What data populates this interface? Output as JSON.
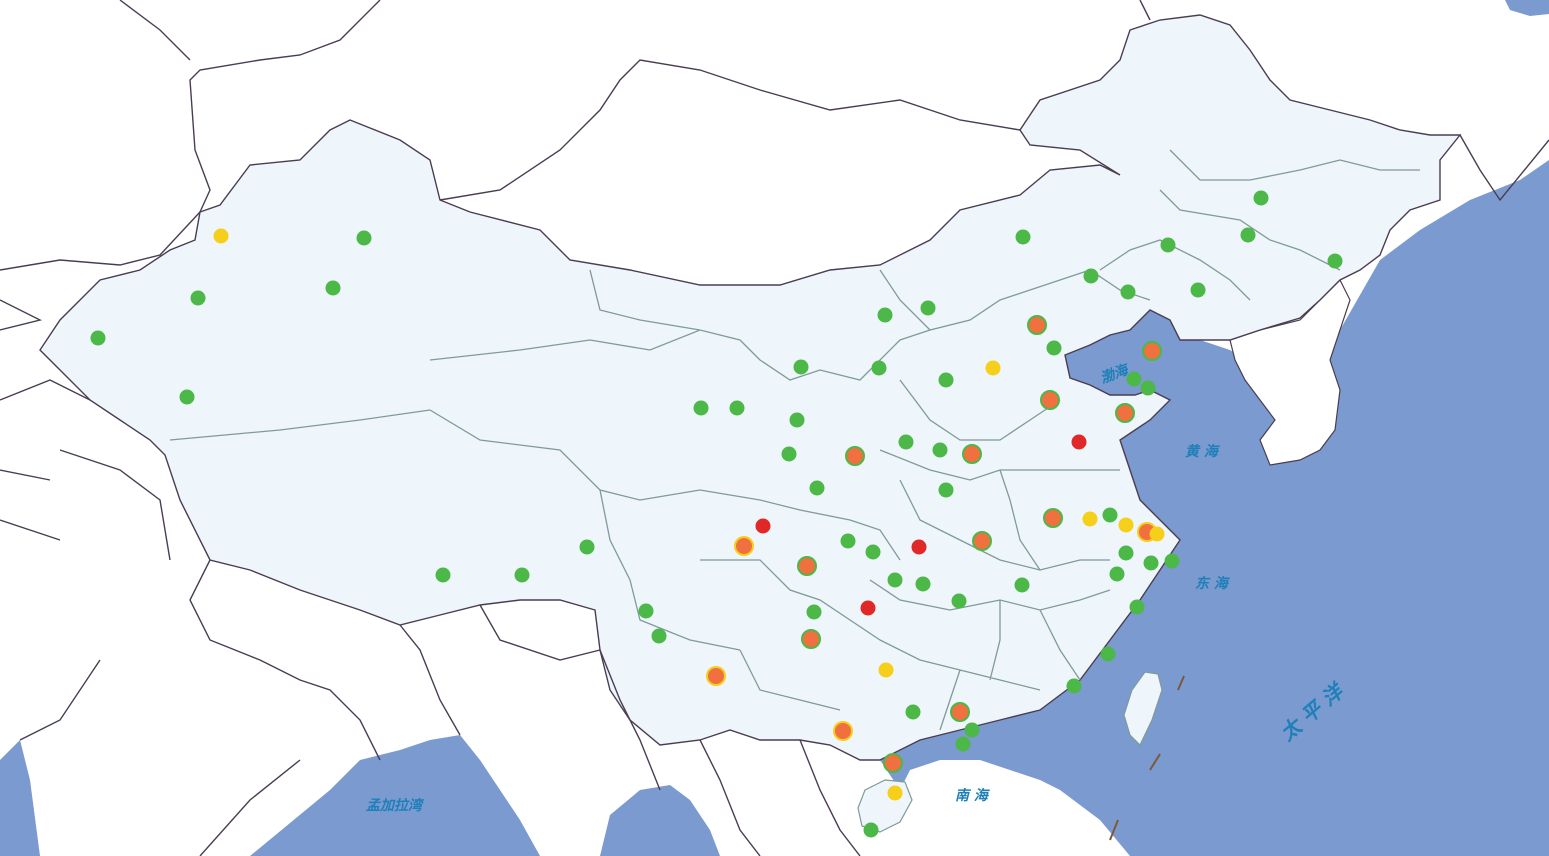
{
  "map": {
    "colors": {
      "sea": "#7a9ad0",
      "land_china": "#eef5fb",
      "land_other": "#ffffff",
      "country_border": "#4a3d52",
      "province_border": "#7f9a9a"
    },
    "sea_labels": {
      "bohai": "渤海",
      "yellow_sea": "黄 海",
      "east_sea": "东 海",
      "south_sea": "南 海",
      "pacific": "太 平 洋",
      "bengal": "孟加拉湾"
    },
    "legend_colors": {
      "good": "#4cb848",
      "moderate": "#f5cf1a",
      "unhealthy": "#f07040",
      "very_unhealthy": "#e02828"
    },
    "stations": [
      {
        "c": "good"
      },
      {
        "c": "moderate"
      },
      {
        "c": "good"
      },
      {
        "c": "good"
      },
      {
        "c": "good"
      },
      {
        "c": "good"
      },
      {
        "c": "good"
      },
      {
        "c": "good"
      },
      {
        "c": "good"
      },
      {
        "c": "good"
      },
      {
        "c": "good"
      },
      {
        "c": "good"
      },
      {
        "c": "good"
      },
      {
        "c": "unhealthy-ring-good"
      },
      {
        "c": "good"
      },
      {
        "c": "moderate"
      },
      {
        "c": "good"
      },
      {
        "c": "unhealthy-ring-good"
      },
      {
        "c": "good"
      },
      {
        "c": "good"
      },
      {
        "c": "unhealthy-ring-good"
      },
      {
        "c": "unhealthy-ring-good"
      },
      {
        "c": "very_unhealthy"
      },
      {
        "c": "good"
      },
      {
        "c": "good"
      },
      {
        "c": "good"
      },
      {
        "c": "good"
      },
      {
        "c": "good"
      },
      {
        "c": "good"
      },
      {
        "c": "unhealthy-ring-good"
      },
      {
        "c": "good"
      },
      {
        "c": "unhealthy-ring-good"
      },
      {
        "c": "good"
      },
      {
        "c": "good"
      },
      {
        "c": "unhealthy-ring-good"
      },
      {
        "c": "moderate"
      },
      {
        "c": "moderate"
      },
      {
        "c": "unhealthy-ring-moderate"
      },
      {
        "c": "moderate"
      },
      {
        "c": "very_unhealthy"
      },
      {
        "c": "unhealthy-ring-moderate"
      },
      {
        "c": "unhealthy-ring-good"
      },
      {
        "c": "good"
      },
      {
        "c": "good"
      },
      {
        "c": "very_unhealthy"
      },
      {
        "c": "unhealthy-ring-good"
      },
      {
        "c": "good"
      },
      {
        "c": "good"
      },
      {
        "c": "good"
      },
      {
        "c": "good"
      },
      {
        "c": "good"
      },
      {
        "c": "good"
      },
      {
        "c": "good"
      },
      {
        "c": "good"
      },
      {
        "c": "good"
      },
      {
        "c": "good"
      },
      {
        "c": "good"
      },
      {
        "c": "good"
      },
      {
        "c": "very_unhealthy"
      },
      {
        "c": "good"
      },
      {
        "c": "good"
      },
      {
        "c": "unhealthy-ring-good"
      },
      {
        "c": "good"
      },
      {
        "c": "unhealthy-ring-moderate"
      },
      {
        "c": "moderate"
      },
      {
        "c": "good"
      },
      {
        "c": "unhealthy-ring-good"
      },
      {
        "c": "good"
      },
      {
        "c": "good"
      },
      {
        "c": "good"
      },
      {
        "c": "unhealthy-ring-moderate"
      },
      {
        "c": "good"
      },
      {
        "c": "unhealthy-ring-good"
      },
      {
        "c": "moderate"
      },
      {
        "c": "good"
      },
      {
        "c": "good"
      },
      {
        "c": "good"
      },
      {
        "c": "good"
      },
      {
        "c": "good"
      },
      {
        "c": "good"
      }
    ]
  }
}
